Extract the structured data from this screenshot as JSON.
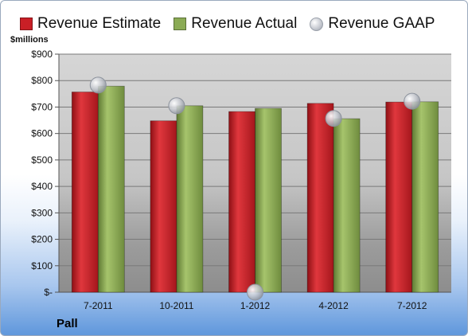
{
  "chart_data": {
    "type": "bar",
    "categories": [
      "7-2011",
      "10-2011",
      "1-2012",
      "4-2012",
      "7-2012"
    ],
    "series": [
      {
        "name": "Revenue Estimate",
        "kind": "bar",
        "color": "#c91f26",
        "values": [
          757,
          648,
          683,
          714,
          719
        ]
      },
      {
        "name": "Revenue Actual",
        "kind": "bar",
        "color": "#8bab55",
        "values": [
          779,
          705,
          695,
          656,
          720
        ]
      },
      {
        "name": "Revenue GAAP",
        "kind": "bubble",
        "color": "#c0c4cc",
        "values": [
          783,
          705,
          0,
          657,
          722
        ]
      }
    ],
    "ylabel": "$millions",
    "ylim": [
      0,
      900
    ],
    "yticks": [
      0,
      100,
      200,
      300,
      400,
      500,
      600,
      700,
      800,
      900
    ],
    "ytick_labels": [
      "$-",
      "$100",
      "$200",
      "$300",
      "$400",
      "$500",
      "$600",
      "$700",
      "$800",
      "$900"
    ],
    "grid": true,
    "legend": "top"
  },
  "footer": {
    "company": "Pall"
  }
}
